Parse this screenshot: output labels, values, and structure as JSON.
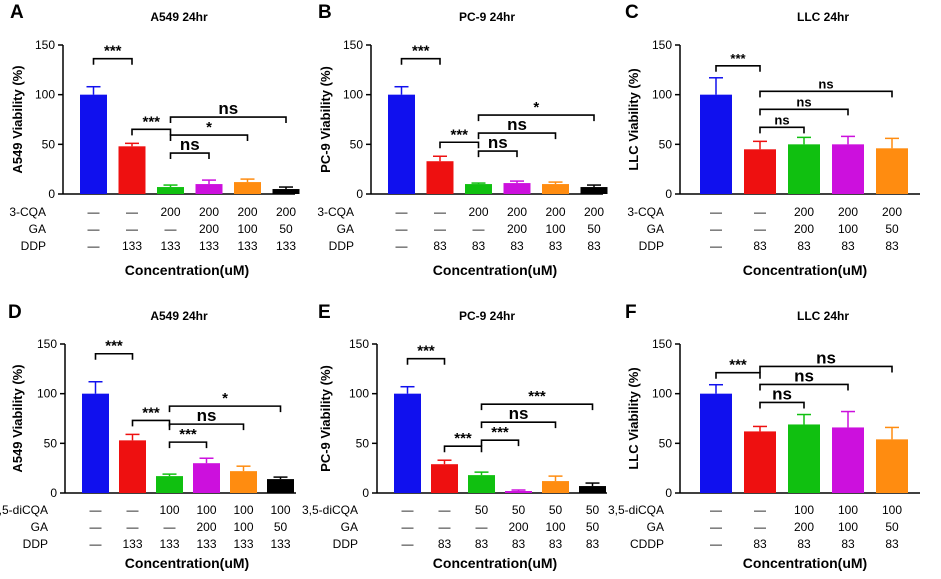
{
  "colors": [
    "#1010ee",
    "#ee1010",
    "#10c010",
    "#cc10dd",
    "#ff8c10",
    "#000000"
  ],
  "chart_data": [
    {
      "panel": "A",
      "type": "bar",
      "title": "A549  24hr",
      "ylabel": "A549 Viability (%)",
      "xlabel": "Concentration(uM)",
      "ylim": [
        0,
        150
      ],
      "yticks": [
        "0",
        "50",
        "100",
        "150"
      ],
      "values": [
        100,
        48,
        7,
        10,
        12,
        5
      ],
      "errors": [
        8,
        3,
        2,
        4,
        3,
        2
      ],
      "conditions": [
        {
          "label": "3-CQA",
          "values": [
            "—",
            "—",
            "200",
            "200",
            "200",
            "200"
          ]
        },
        {
          "label": "GA",
          "values": [
            "—",
            "—",
            "—",
            "200",
            "100",
            "50"
          ]
        },
        {
          "label": "DDP",
          "values": [
            "—",
            "133",
            "133",
            "133",
            "133",
            "133"
          ]
        }
      ],
      "comparisons": [
        {
          "from": 0,
          "to": 1,
          "label": "***"
        },
        {
          "from": 1,
          "to": 2,
          "label": "***"
        },
        {
          "from": 2,
          "to": 3,
          "label": "ns"
        },
        {
          "from": 2,
          "to": 4,
          "label": "*"
        },
        {
          "from": 2,
          "to": 5,
          "label": "ns"
        }
      ]
    },
    {
      "panel": "B",
      "type": "bar",
      "title": "PC-9  24hr",
      "ylabel": "PC-9 Viability (%)",
      "xlabel": "Concentration(uM)",
      "ylim": [
        0,
        150
      ],
      "yticks": [
        "0",
        "50",
        "100",
        "150"
      ],
      "values": [
        100,
        33,
        10,
        11,
        10,
        7
      ],
      "errors": [
        8,
        5,
        1,
        2,
        2,
        2
      ],
      "conditions": [
        {
          "label": "3-CQA",
          "values": [
            "—",
            "—",
            "200",
            "200",
            "200",
            "200"
          ]
        },
        {
          "label": "GA",
          "values": [
            "—",
            "—",
            "—",
            "200",
            "100",
            "50"
          ]
        },
        {
          "label": "DDP",
          "values": [
            "—",
            "83",
            "83",
            "83",
            "83",
            "83"
          ]
        }
      ],
      "comparisons": [
        {
          "from": 0,
          "to": 1,
          "label": "***"
        },
        {
          "from": 1,
          "to": 2,
          "label": "***"
        },
        {
          "from": 2,
          "to": 3,
          "label": "ns"
        },
        {
          "from": 2,
          "to": 4,
          "label": "ns"
        },
        {
          "from": 2,
          "to": 5,
          "label": "*"
        }
      ]
    },
    {
      "panel": "C",
      "type": "bar",
      "title": "LLC 24hr",
      "ylabel": "LLC Viability (%)",
      "xlabel": "Concentration(uM)",
      "ylim": [
        0,
        150
      ],
      "yticks": [
        "0",
        "50",
        "100",
        "150"
      ],
      "values": [
        100,
        45,
        50,
        50,
        46
      ],
      "errors": [
        17,
        8,
        7,
        8,
        10
      ],
      "conditions": [
        {
          "label": "3-CQA",
          "values": [
            "—",
            "—",
            "200",
            "200",
            "200"
          ]
        },
        {
          "label": "GA",
          "values": [
            "—",
            "—",
            "200",
            "100",
            "50"
          ]
        },
        {
          "label": "DDP",
          "values": [
            "—",
            "83",
            "83",
            "83",
            "83"
          ]
        }
      ],
      "comparisons": [
        {
          "from": 0,
          "to": 1,
          "label": "***"
        },
        {
          "from": 1,
          "to": 2,
          "label": "ns"
        },
        {
          "from": 1,
          "to": 3,
          "label": "ns"
        },
        {
          "from": 1,
          "to": 4,
          "label": "ns"
        }
      ]
    },
    {
      "panel": "D",
      "type": "bar",
      "title": "A549  24hr",
      "ylabel": "A549 Viability (%)",
      "xlabel": "Concentration(uM)",
      "ylim": [
        0,
        150
      ],
      "yticks": [
        "0",
        "50",
        "100",
        "150"
      ],
      "values": [
        100,
        53,
        17,
        30,
        22,
        14
      ],
      "errors": [
        12,
        6,
        2,
        5,
        5,
        2
      ],
      "conditions": [
        {
          "label": "3,5-diCQA",
          "values": [
            "—",
            "—",
            "100",
            "100",
            "100",
            "100"
          ]
        },
        {
          "label": "GA",
          "values": [
            "—",
            "—",
            "—",
            "200",
            "100",
            "50"
          ]
        },
        {
          "label": "DDP",
          "values": [
            "—",
            "133",
            "133",
            "133",
            "133",
            "133"
          ]
        }
      ],
      "comparisons": [
        {
          "from": 0,
          "to": 1,
          "label": "***"
        },
        {
          "from": 1,
          "to": 2,
          "label": "***"
        },
        {
          "from": 2,
          "to": 3,
          "label": "***"
        },
        {
          "from": 2,
          "to": 4,
          "label": "ns"
        },
        {
          "from": 2,
          "to": 5,
          "label": "*"
        }
      ]
    },
    {
      "panel": "E",
      "type": "bar",
      "title": "PC-9  24hr",
      "ylabel": "PC-9 Viability (%)",
      "xlabel": "Concentration(uM)",
      "ylim": [
        0,
        150
      ],
      "yticks": [
        "0",
        "50",
        "100",
        "150"
      ],
      "values": [
        100,
        29,
        18,
        2,
        12,
        7
      ],
      "errors": [
        7,
        4,
        3,
        1,
        5,
        3
      ],
      "conditions": [
        {
          "label": "3,5-diCQA",
          "values": [
            "—",
            "—",
            "50",
            "50",
            "50",
            "50"
          ]
        },
        {
          "label": "GA",
          "values": [
            "—",
            "—",
            "—",
            "200",
            "100",
            "50"
          ]
        },
        {
          "label": "DDP",
          "values": [
            "—",
            "83",
            "83",
            "83",
            "83",
            "83"
          ]
        }
      ],
      "comparisons": [
        {
          "from": 0,
          "to": 1,
          "label": "***"
        },
        {
          "from": 1,
          "to": 2,
          "label": "***"
        },
        {
          "from": 2,
          "to": 3,
          "label": "***"
        },
        {
          "from": 2,
          "to": 4,
          "label": "ns"
        },
        {
          "from": 2,
          "to": 5,
          "label": "***"
        }
      ]
    },
    {
      "panel": "F",
      "type": "bar",
      "title": "LLC 24hr",
      "ylabel": "LLC Viability (%)",
      "xlabel": "Concentration(uM)",
      "ylim": [
        0,
        150
      ],
      "yticks": [
        "0",
        "50",
        "100",
        "150"
      ],
      "values": [
        100,
        62,
        69,
        66,
        54
      ],
      "errors": [
        9,
        5,
        10,
        16,
        12
      ],
      "conditions": [
        {
          "label": "3,5-diCQA",
          "values": [
            "—",
            "—",
            "100",
            "100",
            "100"
          ]
        },
        {
          "label": "GA",
          "values": [
            "—",
            "—",
            "200",
            "100",
            "50"
          ]
        },
        {
          "label": "CDDP",
          "values": [
            "—",
            "83",
            "83",
            "83",
            "83"
          ]
        }
      ],
      "comparisons": [
        {
          "from": 0,
          "to": 1,
          "label": "***"
        },
        {
          "from": 1,
          "to": 2,
          "label": "ns"
        },
        {
          "from": 1,
          "to": 3,
          "label": "ns"
        },
        {
          "from": 1,
          "to": 4,
          "label": "ns"
        }
      ]
    }
  ]
}
